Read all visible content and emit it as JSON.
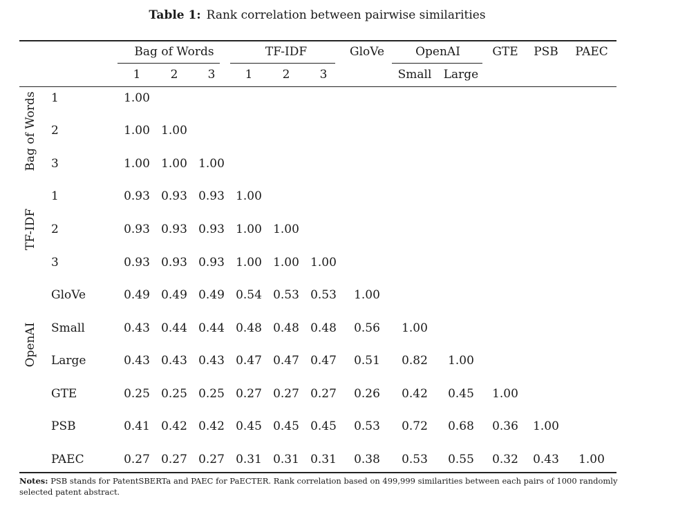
{
  "caption": {
    "label": "Table 1:",
    "text": "Rank correlation between pairwise similarities"
  },
  "column_groups": [
    {
      "name": "Bag of Words",
      "subs": [
        "1",
        "2",
        "3"
      ]
    },
    {
      "name": "TF-IDF",
      "subs": [
        "1",
        "2",
        "3"
      ]
    },
    {
      "name": "GloVe",
      "subs": []
    },
    {
      "name": "OpenAI",
      "subs": [
        "Small",
        "Large"
      ]
    },
    {
      "name": "GTE",
      "subs": []
    },
    {
      "name": "PSB",
      "subs": []
    },
    {
      "name": "PAEC",
      "subs": []
    }
  ],
  "row_groups": [
    {
      "name": "Bag of Words",
      "rows": [
        "1",
        "2",
        "3"
      ]
    },
    {
      "name": "TF-IDF",
      "rows": [
        "1",
        "2",
        "3"
      ]
    },
    {
      "name": "",
      "rows": [
        "GloVe"
      ]
    },
    {
      "name": "OpenAI",
      "rows": [
        "Small",
        "Large"
      ]
    },
    {
      "name": "",
      "rows": [
        "GTE"
      ]
    },
    {
      "name": "",
      "rows": [
        "PSB"
      ]
    },
    {
      "name": "",
      "rows": [
        "PAEC"
      ]
    }
  ],
  "matrix": [
    [
      "1.00"
    ],
    [
      "1.00",
      "1.00"
    ],
    [
      "1.00",
      "1.00",
      "1.00"
    ],
    [
      "0.93",
      "0.93",
      "0.93",
      "1.00"
    ],
    [
      "0.93",
      "0.93",
      "0.93",
      "1.00",
      "1.00"
    ],
    [
      "0.93",
      "0.93",
      "0.93",
      "1.00",
      "1.00",
      "1.00"
    ],
    [
      "0.49",
      "0.49",
      "0.49",
      "0.54",
      "0.53",
      "0.53",
      "1.00"
    ],
    [
      "0.43",
      "0.44",
      "0.44",
      "0.48",
      "0.48",
      "0.48",
      "0.56",
      "1.00"
    ],
    [
      "0.43",
      "0.43",
      "0.43",
      "0.47",
      "0.47",
      "0.47",
      "0.51",
      "0.82",
      "1.00"
    ],
    [
      "0.25",
      "0.25",
      "0.25",
      "0.27",
      "0.27",
      "0.27",
      "0.26",
      "0.42",
      "0.45",
      "1.00"
    ],
    [
      "0.41",
      "0.42",
      "0.42",
      "0.45",
      "0.45",
      "0.45",
      "0.53",
      "0.72",
      "0.68",
      "0.36",
      "1.00"
    ],
    [
      "0.27",
      "0.27",
      "0.27",
      "0.31",
      "0.31",
      "0.31",
      "0.38",
      "0.53",
      "0.55",
      "0.32",
      "0.43",
      "1.00"
    ]
  ],
  "notes": {
    "label": "Notes:",
    "text": "PSB stands for PatentSBERTa and PAEC for PaECTER. Rank correlation based on 499,999 similarities between each pairs of 1000 randomly selected patent abstract."
  }
}
